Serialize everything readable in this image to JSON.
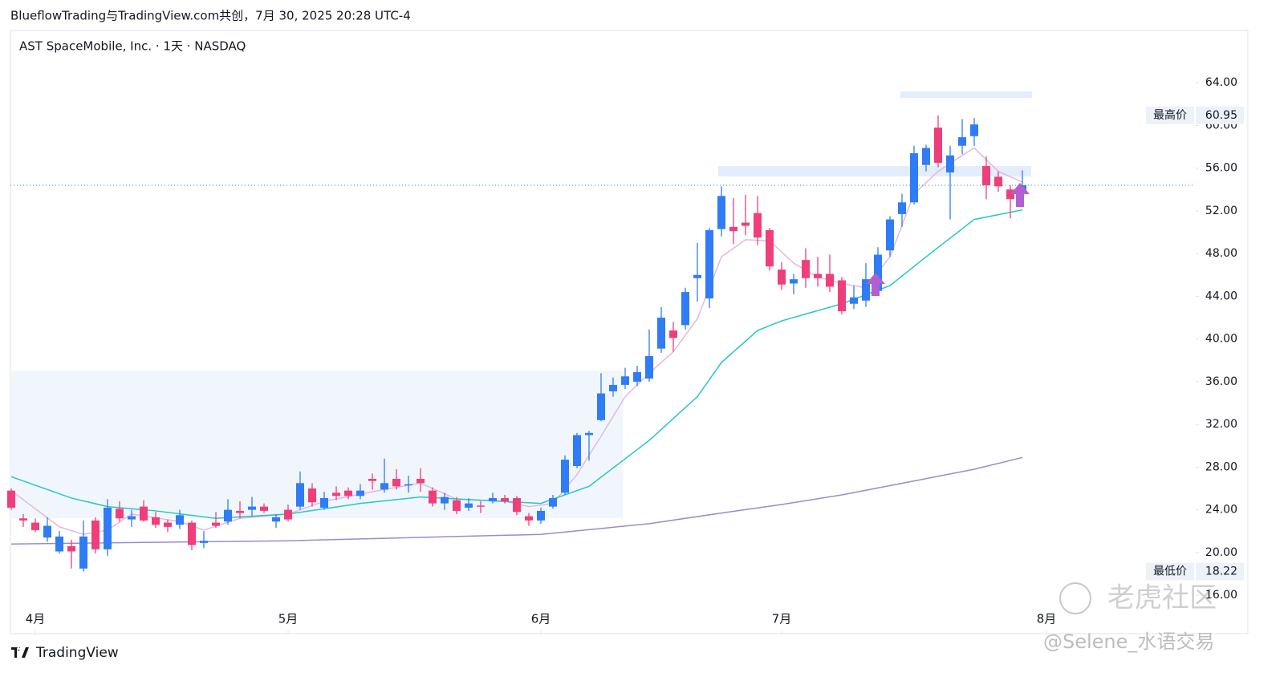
{
  "header": {
    "credit": "BlueflowTrading与TradingView.com共创，7月 30, 2025 20:28 UTC-4"
  },
  "chart_data": {
    "type": "candlestick",
    "title": "AST SpaceMobile, Inc. · 1天 · NASDAQ",
    "up_color": "#2f7cf6",
    "down_color": "#ef3f7b",
    "candles": [
      [
        25.8,
        26,
        24,
        24.2
      ],
      [
        23.2,
        23.6,
        22.4,
        23
      ],
      [
        22.8,
        23.2,
        21.9,
        22.1
      ],
      [
        21.4,
        23.3,
        21,
        22.5
      ],
      [
        20.1,
        22,
        19.9,
        21.5
      ],
      [
        20.6,
        21.2,
        18.5,
        20.1
      ],
      [
        18.5,
        23,
        18.22,
        21.5
      ],
      [
        23,
        23.3,
        19.9,
        20.3
      ],
      [
        20.3,
        25,
        19.7,
        24.2
      ],
      [
        24.1,
        24.8,
        22.9,
        23.2
      ],
      [
        23.1,
        24,
        22.4,
        23.4
      ],
      [
        24.3,
        24.9,
        22.9,
        23
      ],
      [
        23.3,
        23.8,
        22.3,
        22.6
      ],
      [
        22.8,
        23.1,
        21.9,
        22.4
      ],
      [
        22.6,
        24,
        22.2,
        23.5
      ],
      [
        22.8,
        23,
        20.2,
        20.7
      ],
      [
        20.9,
        22,
        20.4,
        21.1
      ],
      [
        22.8,
        23.8,
        22.3,
        22.5
      ],
      [
        22.9,
        25,
        22.6,
        24
      ],
      [
        23.9,
        24.8,
        23.2,
        23.7
      ],
      [
        24,
        25.2,
        23.4,
        24.3
      ],
      [
        24.3,
        24.6,
        23.7,
        23.9
      ],
      [
        22.9,
        23.6,
        22.3,
        23.3
      ],
      [
        24,
        24.5,
        22.9,
        23.1
      ],
      [
        24.3,
        27.6,
        24,
        26.5
      ],
      [
        26,
        26.5,
        24.3,
        24.7
      ],
      [
        24.2,
        25.7,
        24,
        25.1
      ],
      [
        25.6,
        26.2,
        24.9,
        25.3
      ],
      [
        25.8,
        26.1,
        25,
        25.3
      ],
      [
        25.3,
        26.4,
        25,
        25.8
      ],
      [
        26.9,
        27.4,
        25.9,
        26.7
      ],
      [
        25.9,
        28.8,
        25.6,
        26.5
      ],
      [
        26.9,
        27.8,
        25.9,
        26.2
      ],
      [
        26.3,
        27.2,
        25.6,
        26.4
      ],
      [
        26.9,
        27.9,
        25.7,
        26.5
      ],
      [
        25.8,
        26.1,
        24.3,
        24.6
      ],
      [
        24.6,
        25.6,
        24,
        25.2
      ],
      [
        24.9,
        25.2,
        23.6,
        23.9
      ],
      [
        24.2,
        25.1,
        23.9,
        24.6
      ],
      [
        24.4,
        24.8,
        23.7,
        24.3
      ],
      [
        24.8,
        25.6,
        24.6,
        25.1
      ],
      [
        25.1,
        25.4,
        24.6,
        24.8
      ],
      [
        25.1,
        25.3,
        23.5,
        23.8
      ],
      [
        23.4,
        23.7,
        22.5,
        23
      ],
      [
        23,
        24.2,
        22.7,
        23.9
      ],
      [
        24.3,
        25.4,
        24.1,
        25.1
      ],
      [
        25.6,
        29.1,
        25.4,
        28.7
      ],
      [
        28.1,
        31.2,
        27.9,
        31
      ],
      [
        31,
        31.4,
        28.6,
        31.2
      ],
      [
        32.4,
        36.8,
        32.3,
        34.9
      ],
      [
        35.1,
        36.4,
        34.6,
        35.7
      ],
      [
        35.7,
        37.3,
        35.3,
        36.5
      ],
      [
        36,
        37.5,
        35.6,
        36.9
      ],
      [
        36.3,
        40.9,
        36,
        38.4
      ],
      [
        39.1,
        43,
        38.7,
        42
      ],
      [
        40.8,
        41.6,
        38.8,
        40.1
      ],
      [
        41.3,
        44.8,
        40.9,
        44.4
      ],
      [
        45.7,
        49,
        43.5,
        46
      ],
      [
        43.8,
        50.4,
        42.9,
        50.2
      ],
      [
        50.3,
        54.3,
        49.6,
        53.4
      ],
      [
        50.5,
        53.2,
        48.9,
        50.1
      ],
      [
        50.9,
        53.5,
        49.7,
        50.6
      ],
      [
        51.8,
        53.4,
        48.8,
        49.5
      ],
      [
        50.2,
        50.4,
        46.4,
        46.8
      ],
      [
        46.5,
        47.2,
        44.6,
        45.1
      ],
      [
        45.2,
        46.1,
        44.2,
        45.6
      ],
      [
        47.4,
        48.5,
        44.8,
        45.7
      ],
      [
        46.1,
        47.7,
        44.9,
        45.7
      ],
      [
        46.1,
        47.9,
        44.4,
        44.9
      ],
      [
        45.5,
        45.8,
        42.3,
        42.6
      ],
      [
        43.3,
        45,
        42.8,
        43.9
      ],
      [
        43.6,
        47.1,
        43,
        45.6
      ],
      [
        44.5,
        48.6,
        44.1,
        47.9
      ],
      [
        48.3,
        51.5,
        47.7,
        51.2
      ],
      [
        51.7,
        53.6,
        50.5,
        52.8
      ],
      [
        52.8,
        58.1,
        52.6,
        57.4
      ],
      [
        56.3,
        58.2,
        55.7,
        57.9
      ],
      [
        59.8,
        60.95,
        56.1,
        56.5
      ],
      [
        55.6,
        58.1,
        51.2,
        57.2
      ],
      [
        58.1,
        60.6,
        57.3,
        58.9
      ],
      [
        59,
        60.7,
        58.1,
        60.1
      ],
      [
        56.2,
        57.1,
        53.1,
        54.4
      ],
      [
        55.2,
        55.7,
        53.8,
        54.3
      ],
      [
        54,
        54.4,
        51.3,
        53.1
      ],
      [
        53.7,
        55.8,
        53.2,
        54.4
      ]
    ],
    "lines": [
      {
        "color": "#e3b7e3",
        "x": [
          0,
          4,
          6,
          8,
          10,
          14,
          16,
          19,
          23,
          26,
          30,
          34,
          37,
          41,
          43,
          45,
          47,
          49,
          51,
          53,
          55,
          57,
          59,
          61,
          63,
          65,
          67,
          69,
          71,
          73,
          75,
          77,
          79,
          80,
          82,
          84
        ],
        "values": [
          25.8,
          22.4,
          21.7,
          22.1,
          23.6,
          22.9,
          22.1,
          23.2,
          23.6,
          24.8,
          25.7,
          26.5,
          25,
          24.8,
          24.3,
          24.6,
          27.3,
          30.9,
          34.6,
          36.8,
          38.8,
          41.9,
          47.7,
          49.3,
          49.2,
          47.1,
          45.8,
          45.2,
          44.8,
          47.7,
          53.6,
          55.7,
          57.2,
          57.9,
          55.7,
          54.7
        ]
      },
      {
        "color": "#26c6c6",
        "x": [
          0,
          5,
          8,
          12,
          17,
          23,
          29,
          34,
          39,
          44,
          48,
          53,
          57,
          59,
          62,
          64,
          69,
          73,
          76,
          80,
          84
        ],
        "values": [
          27.1,
          25.1,
          24.3,
          23.9,
          23.2,
          23.6,
          24.6,
          25.2,
          24.9,
          24.6,
          26.2,
          30.5,
          34.6,
          37.8,
          40.8,
          41.7,
          43.3,
          45,
          47.7,
          51.2,
          52.1
        ]
      },
      {
        "color": "#9c8ad0",
        "x": [
          0,
          23,
          44,
          53,
          59,
          64,
          69,
          75,
          80,
          84
        ],
        "values": [
          20.8,
          21.1,
          21.7,
          22.7,
          23.7,
          24.5,
          25.4,
          26.7,
          27.8,
          28.9
        ]
      }
    ],
    "ylim": [
      12.4,
      68.9
    ],
    "yticks": [
      {
        "value": 16,
        "label": "16.00"
      },
      {
        "value": 20,
        "label": "20.00"
      },
      {
        "value": 24,
        "label": "24.00"
      },
      {
        "value": 28,
        "label": "28.00"
      },
      {
        "value": 32,
        "label": "32.00"
      },
      {
        "value": 36,
        "label": "36.00"
      },
      {
        "value": 40,
        "label": "40.00"
      },
      {
        "value": 44,
        "label": "44.00"
      },
      {
        "value": 48,
        "label": "48.00"
      },
      {
        "value": 52,
        "label": "52.00"
      },
      {
        "value": 56,
        "label": "56.00"
      },
      {
        "value": 60,
        "label": "60.00"
      },
      {
        "value": 64,
        "label": "64.00"
      }
    ],
    "xticks": [
      {
        "value": 2,
        "label": "4月"
      },
      {
        "value": 23,
        "label": "5月"
      },
      {
        "value": 44,
        "label": "6月"
      },
      {
        "value": 64,
        "label": "7月"
      },
      {
        "value": 86,
        "label": "8月"
      }
    ],
    "high": {
      "label": "最高价",
      "value": 60.95
    },
    "low": {
      "label": "最低价",
      "value": 18.22
    }
  },
  "footer": {
    "brand": "TradingView"
  },
  "watermark": {
    "site": "老虎社区",
    "handle": "@Selene_水语交易"
  }
}
